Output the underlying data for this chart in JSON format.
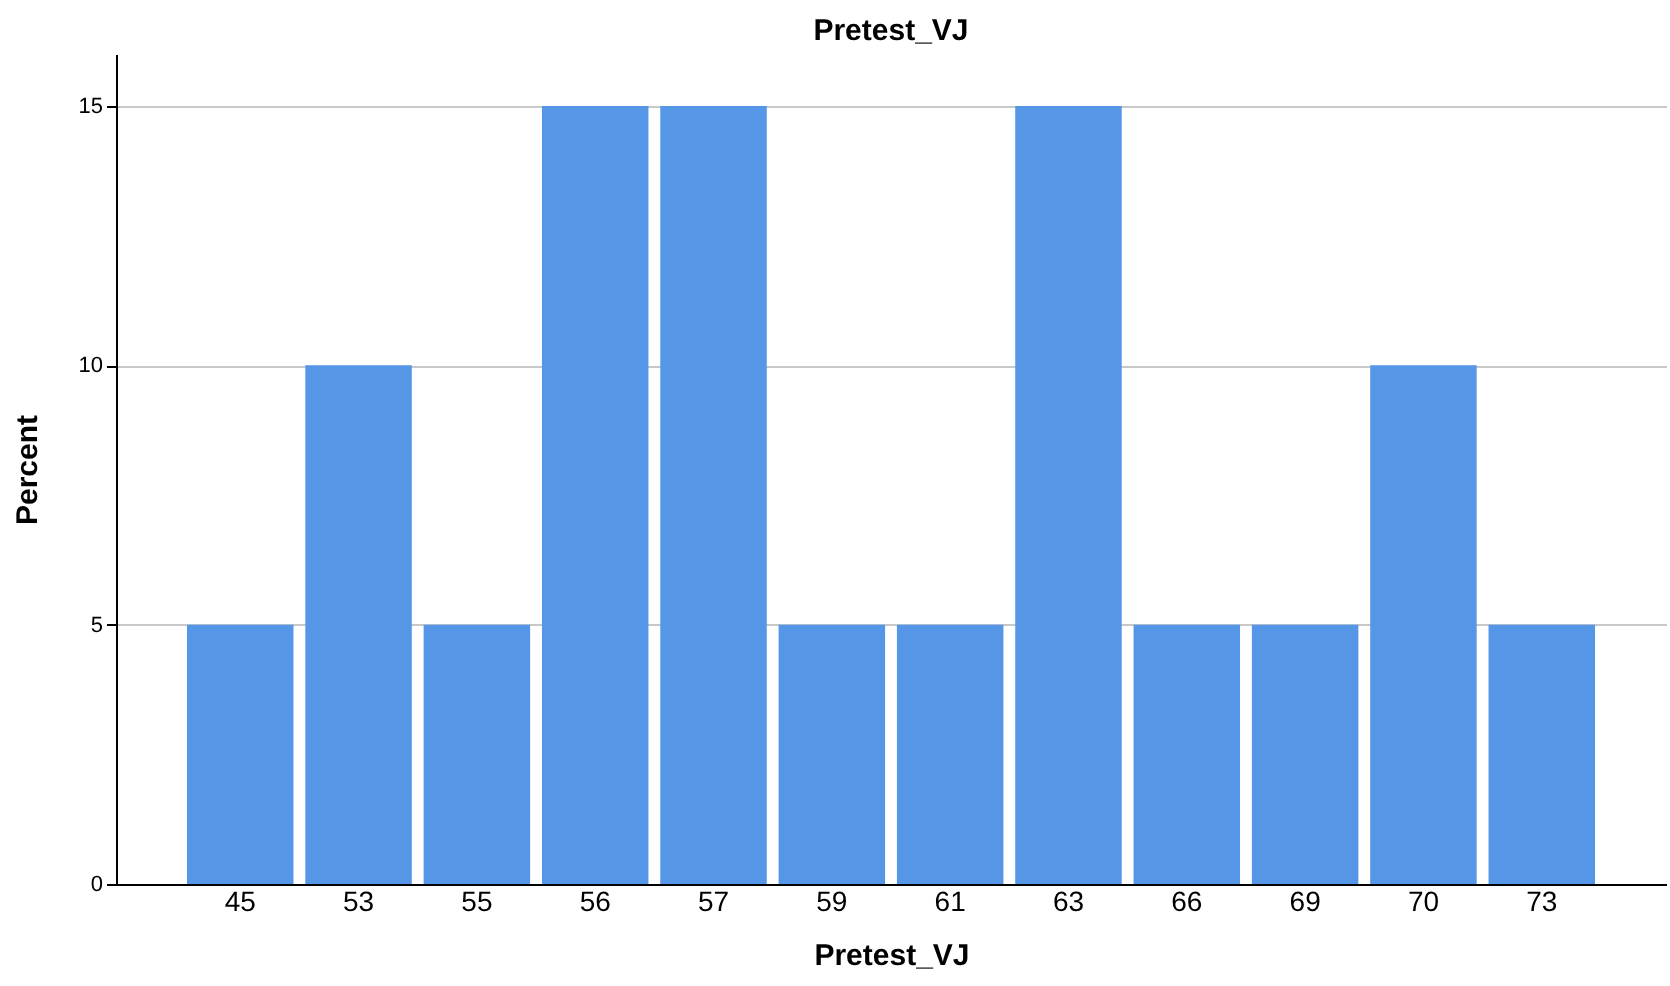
{
  "chart_data": {
    "type": "bar",
    "title": "Pretest_VJ",
    "xlabel": "Pretest_VJ",
    "ylabel": "Percent",
    "categories": [
      "45",
      "53",
      "55",
      "56",
      "57",
      "59",
      "61",
      "63",
      "66",
      "69",
      "70",
      "73"
    ],
    "values": [
      5,
      10,
      5,
      15,
      15,
      5,
      5,
      15,
      5,
      5,
      10,
      5
    ],
    "color": "#5596e6",
    "ylim": [
      0,
      16
    ],
    "yticks": [
      0,
      5,
      10,
      15
    ],
    "grid": "y"
  }
}
